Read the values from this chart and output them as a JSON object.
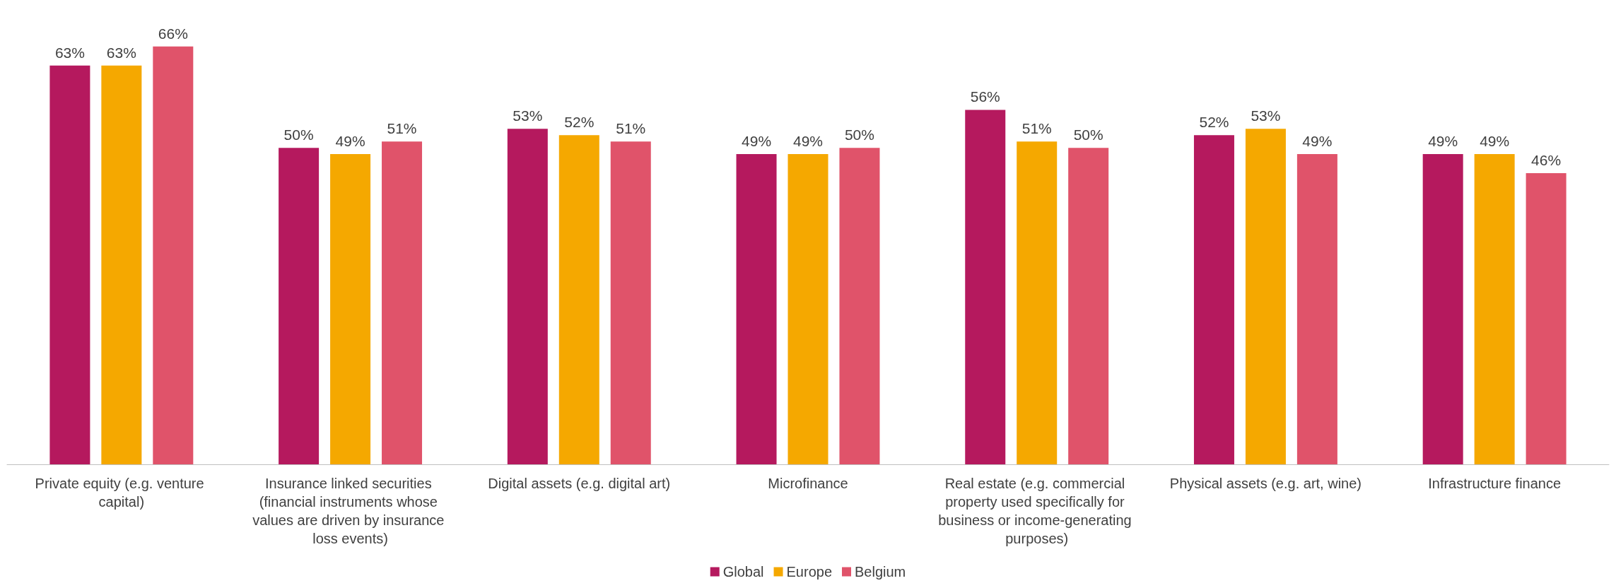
{
  "chart_data": {
    "type": "bar",
    "categories": [
      "Private equity (e.g. venture capital)",
      "Insurance linked securities (financial instruments whose values are driven by insurance loss events)",
      "Digital assets (e.g. digital art)",
      "Microfinance",
      "Real estate (e.g. commercial property used specifically for business or income-generating purposes)",
      "Physical assets (e.g. art, wine)",
      "Infrastructure finance"
    ],
    "series": [
      {
        "name": "Global",
        "color": "#b5195e",
        "values": [
          63,
          50,
          53,
          49,
          56,
          52,
          49
        ],
        "value_labels": [
          "63%",
          "50%",
          "53%",
          "49%",
          "56%",
          "52%",
          "49%"
        ]
      },
      {
        "name": "Europe",
        "color": "#f5a800",
        "values": [
          63,
          49,
          52,
          49,
          51,
          53,
          49
        ],
        "value_labels": [
          "63%",
          "49%",
          "52%",
          "49%",
          "51%",
          "53%",
          "49%"
        ]
      },
      {
        "name": "Belgium",
        "color": "#e0536a",
        "values": [
          66,
          51,
          51,
          50,
          50,
          49,
          46
        ],
        "value_labels": [
          "66%",
          "51%",
          "51%",
          "50%",
          "50%",
          "49%",
          "46%"
        ]
      }
    ],
    "legend": "bottom",
    "grid": false
  }
}
